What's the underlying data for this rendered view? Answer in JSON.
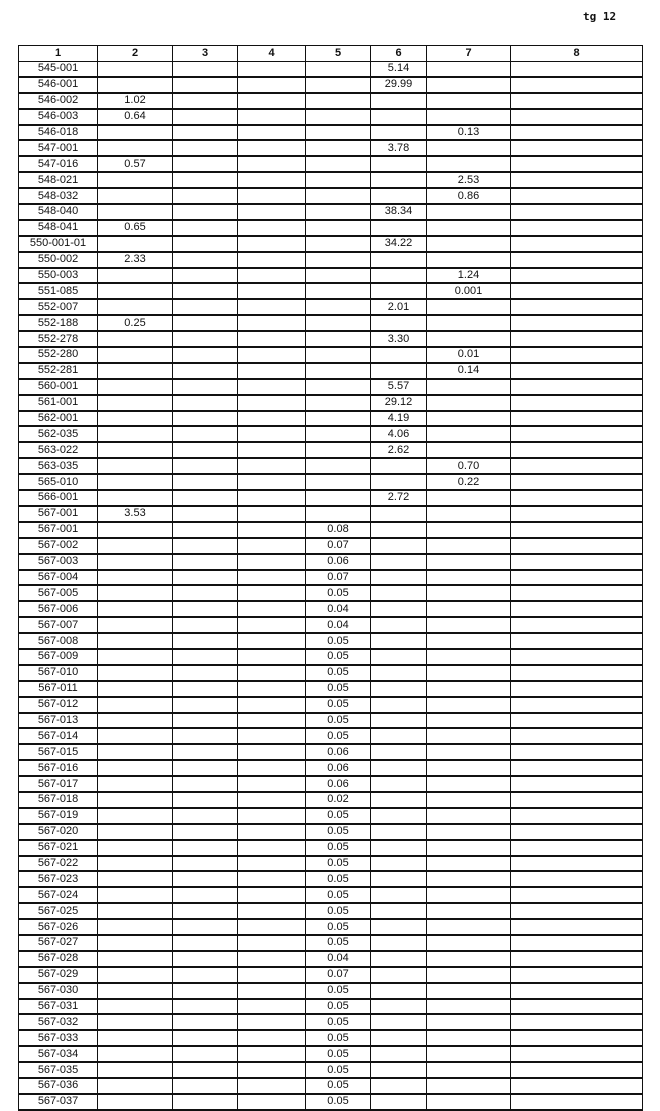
{
  "page_label": "tg 12",
  "headers": [
    "1",
    "2",
    "3",
    "4",
    "5",
    "6",
    "7",
    "8"
  ],
  "rows": [
    [
      "545-001",
      "",
      "",
      "",
      "",
      "5.14",
      "",
      ""
    ],
    [
      "546-001",
      "",
      "",
      "",
      "",
      "29.99",
      "",
      ""
    ],
    [
      "546-002",
      "1.02",
      "",
      "",
      "",
      "",
      "",
      ""
    ],
    [
      "546-003",
      "0.64",
      "",
      "",
      "",
      "",
      "",
      ""
    ],
    [
      "546-018",
      "",
      "",
      "",
      "",
      "",
      "0.13",
      ""
    ],
    [
      "547-001",
      "",
      "",
      "",
      "",
      "3.78",
      "",
      ""
    ],
    [
      "547-016",
      "0.57",
      "",
      "",
      "",
      "",
      "",
      ""
    ],
    [
      "548-021",
      "",
      "",
      "",
      "",
      "",
      "2.53",
      ""
    ],
    [
      "548-032",
      "",
      "",
      "",
      "",
      "",
      "0.86",
      ""
    ],
    [
      "548-040",
      "",
      "",
      "",
      "",
      "38.34",
      "",
      ""
    ],
    [
      "548-041",
      "0.65",
      "",
      "",
      "",
      "",
      "",
      ""
    ],
    [
      "550-001-01",
      "",
      "",
      "",
      "",
      "34.22",
      "",
      ""
    ],
    [
      "550-002",
      "2.33",
      "",
      "",
      "",
      "",
      "",
      ""
    ],
    [
      "550-003",
      "",
      "",
      "",
      "",
      "",
      "1.24",
      ""
    ],
    [
      "551-085",
      "",
      "",
      "",
      "",
      "",
      "0.001",
      ""
    ],
    [
      "552-007",
      "",
      "",
      "",
      "",
      "2.01",
      "",
      ""
    ],
    [
      "552-188",
      "0.25",
      "",
      "",
      "",
      "",
      "",
      ""
    ],
    [
      "552-278",
      "",
      "",
      "",
      "",
      "3.30",
      "",
      ""
    ],
    [
      "552-280",
      "",
      "",
      "",
      "",
      "",
      "0.01",
      ""
    ],
    [
      "552-281",
      "",
      "",
      "",
      "",
      "",
      "0.14",
      ""
    ],
    [
      "560-001",
      "",
      "",
      "",
      "",
      "5.57",
      "",
      ""
    ],
    [
      "561-001",
      "",
      "",
      "",
      "",
      "29.12",
      "",
      ""
    ],
    [
      "562-001",
      "",
      "",
      "",
      "",
      "4.19",
      "",
      ""
    ],
    [
      "562-035",
      "",
      "",
      "",
      "",
      "4.06",
      "",
      ""
    ],
    [
      "563-022",
      "",
      "",
      "",
      "",
      "2.62",
      "",
      ""
    ],
    [
      "563-035",
      "",
      "",
      "",
      "",
      "",
      "0.70",
      ""
    ],
    [
      "565-010",
      "",
      "",
      "",
      "",
      "",
      "0.22",
      ""
    ],
    [
      "566-001",
      "",
      "",
      "",
      "",
      "2.72",
      "",
      ""
    ],
    [
      "567-001",
      "3.53",
      "",
      "",
      "",
      "",
      "",
      ""
    ],
    [
      "567-001",
      "",
      "",
      "",
      "0.08",
      "",
      "",
      ""
    ],
    [
      "567-002",
      "",
      "",
      "",
      "0.07",
      "",
      "",
      ""
    ],
    [
      "567-003",
      "",
      "",
      "",
      "0.06",
      "",
      "",
      ""
    ],
    [
      "567-004",
      "",
      "",
      "",
      "0.07",
      "",
      "",
      ""
    ],
    [
      "567-005",
      "",
      "",
      "",
      "0.05",
      "",
      "",
      ""
    ],
    [
      "567-006",
      "",
      "",
      "",
      "0.04",
      "",
      "",
      ""
    ],
    [
      "567-007",
      "",
      "",
      "",
      "0.04",
      "",
      "",
      ""
    ],
    [
      "567-008",
      "",
      "",
      "",
      "0.05",
      "",
      "",
      ""
    ],
    [
      "567-009",
      "",
      "",
      "",
      "0.05",
      "",
      "",
      ""
    ],
    [
      "567-010",
      "",
      "",
      "",
      "0.05",
      "",
      "",
      ""
    ],
    [
      "567-011",
      "",
      "",
      "",
      "0.05",
      "",
      "",
      ""
    ],
    [
      "567-012",
      "",
      "",
      "",
      "0.05",
      "",
      "",
      ""
    ],
    [
      "567-013",
      "",
      "",
      "",
      "0.05",
      "",
      "",
      ""
    ],
    [
      "567-014",
      "",
      "",
      "",
      "0.05",
      "",
      "",
      ""
    ],
    [
      "567-015",
      "",
      "",
      "",
      "0.06",
      "",
      "",
      ""
    ],
    [
      "567-016",
      "",
      "",
      "",
      "0.06",
      "",
      "",
      ""
    ],
    [
      "567-017",
      "",
      "",
      "",
      "0.06",
      "",
      "",
      ""
    ],
    [
      "567-018",
      "",
      "",
      "",
      "0.02",
      "",
      "",
      ""
    ],
    [
      "567-019",
      "",
      "",
      "",
      "0.05",
      "",
      "",
      ""
    ],
    [
      "567-020",
      "",
      "",
      "",
      "0.05",
      "",
      "",
      ""
    ],
    [
      "567-021",
      "",
      "",
      "",
      "0.05",
      "",
      "",
      ""
    ],
    [
      "567-022",
      "",
      "",
      "",
      "0.05",
      "",
      "",
      ""
    ],
    [
      "567-023",
      "",
      "",
      "",
      "0.05",
      "",
      "",
      ""
    ],
    [
      "567-024",
      "",
      "",
      "",
      "0.05",
      "",
      "",
      ""
    ],
    [
      "567-025",
      "",
      "",
      "",
      "0.05",
      "",
      "",
      ""
    ],
    [
      "567-026",
      "",
      "",
      "",
      "0.05",
      "",
      "",
      ""
    ],
    [
      "567-027",
      "",
      "",
      "",
      "0.05",
      "",
      "",
      ""
    ],
    [
      "567-028",
      "",
      "",
      "",
      "0.04",
      "",
      "",
      ""
    ],
    [
      "567-029",
      "",
      "",
      "",
      "0.07",
      "",
      "",
      ""
    ],
    [
      "567-030",
      "",
      "",
      "",
      "0.05",
      "",
      "",
      ""
    ],
    [
      "567-031",
      "",
      "",
      "",
      "0.05",
      "",
      "",
      ""
    ],
    [
      "567-032",
      "",
      "",
      "",
      "0.05",
      "",
      "",
      ""
    ],
    [
      "567-033",
      "",
      "",
      "",
      "0.05",
      "",
      "",
      ""
    ],
    [
      "567-034",
      "",
      "",
      "",
      "0.05",
      "",
      "",
      ""
    ],
    [
      "567-035",
      "",
      "",
      "",
      "0.05",
      "",
      "",
      ""
    ],
    [
      "567-036",
      "",
      "",
      "",
      "0.05",
      "",
      "",
      ""
    ],
    [
      "567-037",
      "",
      "",
      "",
      "0.05",
      "",
      "",
      ""
    ]
  ]
}
